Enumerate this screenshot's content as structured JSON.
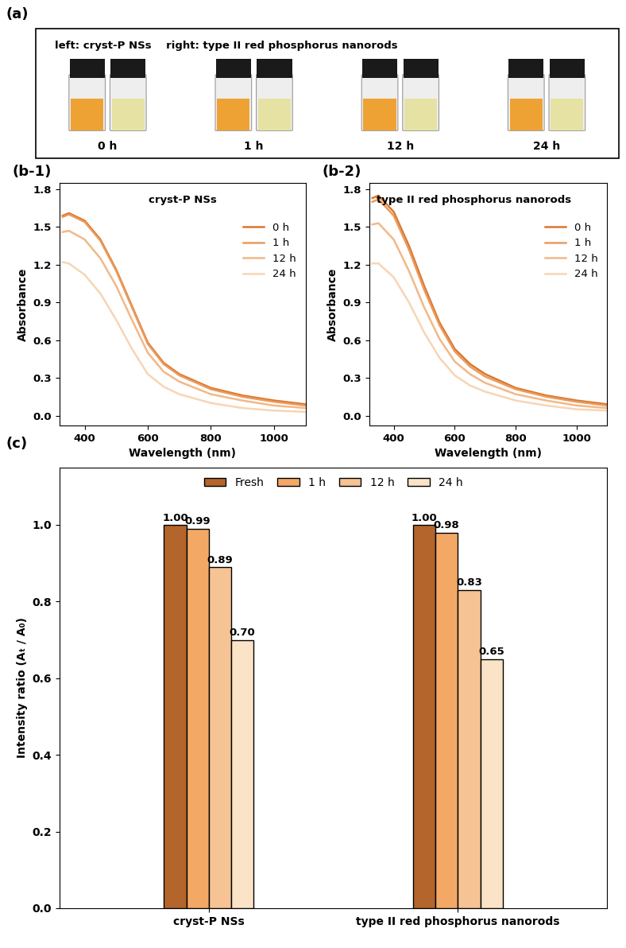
{
  "panel_a": {
    "panel_label": "(a)",
    "header": "left: cryst-P NSs    right: type II red phosphorus nanorods",
    "times": [
      "0 h",
      "1 h",
      "12 h",
      "24 h"
    ]
  },
  "chart_data": [
    {
      "panel_label": "(b-1)",
      "type": "line",
      "title": "cryst-P NSs",
      "x_label": "Wavelength (nm)",
      "y_label": "Absorbance",
      "x": [
        330,
        350,
        400,
        450,
        500,
        550,
        600,
        650,
        700,
        800,
        900,
        1000,
        1100
      ],
      "series": [
        {
          "name": "0 h",
          "color": "#d9772e",
          "values": [
            1.59,
            1.61,
            1.55,
            1.4,
            1.16,
            0.87,
            0.58,
            0.42,
            0.33,
            0.22,
            0.16,
            0.12,
            0.09
          ]
        },
        {
          "name": "1 h",
          "color": "#eb9a5c",
          "values": [
            1.58,
            1.6,
            1.54,
            1.39,
            1.15,
            0.86,
            0.57,
            0.41,
            0.32,
            0.21,
            0.15,
            0.11,
            0.08
          ]
        },
        {
          "name": "12 h",
          "color": "#f2b888",
          "values": [
            1.46,
            1.47,
            1.4,
            1.25,
            1.03,
            0.76,
            0.5,
            0.35,
            0.27,
            0.17,
            0.12,
            0.08,
            0.06
          ]
        },
        {
          "name": "24 h",
          "color": "#f7d5b4",
          "values": [
            1.22,
            1.21,
            1.12,
            0.97,
            0.76,
            0.53,
            0.33,
            0.23,
            0.17,
            0.1,
            0.06,
            0.04,
            0.03
          ]
        }
      ],
      "xlim": [
        320,
        1100
      ],
      "xticks": [
        400,
        600,
        800,
        1000
      ],
      "ylim": [
        -0.08,
        1.85
      ],
      "yticks": [
        0.0,
        0.3,
        0.6,
        0.9,
        1.2,
        1.5,
        1.8
      ],
      "legend": "center right"
    },
    {
      "panel_label": "(b-2)",
      "type": "line",
      "title": "type II red phosphorus nanorods",
      "x_label": "Wavelength (nm)",
      "y_label": "Absorbance",
      "x": [
        330,
        350,
        400,
        450,
        500,
        550,
        600,
        650,
        700,
        800,
        900,
        1000,
        1100
      ],
      "series": [
        {
          "name": "0 h",
          "color": "#d9772e",
          "values": [
            1.73,
            1.75,
            1.62,
            1.35,
            1.03,
            0.74,
            0.53,
            0.41,
            0.33,
            0.22,
            0.16,
            0.12,
            0.09
          ]
        },
        {
          "name": "1 h",
          "color": "#eb9a5c",
          "values": [
            1.7,
            1.72,
            1.59,
            1.32,
            1.0,
            0.72,
            0.51,
            0.39,
            0.31,
            0.21,
            0.15,
            0.11,
            0.08
          ]
        },
        {
          "name": "12 h",
          "color": "#f2b888",
          "values": [
            1.52,
            1.53,
            1.4,
            1.15,
            0.86,
            0.61,
            0.43,
            0.33,
            0.26,
            0.17,
            0.12,
            0.08,
            0.06
          ]
        },
        {
          "name": "24 h",
          "color": "#f7d5b4",
          "values": [
            1.21,
            1.21,
            1.1,
            0.9,
            0.66,
            0.46,
            0.32,
            0.24,
            0.19,
            0.12,
            0.08,
            0.05,
            0.04
          ]
        }
      ],
      "xlim": [
        320,
        1100
      ],
      "xticks": [
        400,
        600,
        800,
        1000
      ],
      "ylim": [
        -0.08,
        1.85
      ],
      "yticks": [
        0.0,
        0.3,
        0.6,
        0.9,
        1.2,
        1.5,
        1.8
      ],
      "legend": "center right"
    },
    {
      "panel_label": "(c)",
      "type": "bar",
      "y_label": "Intensity ratio (Aₜ / A₀)",
      "categories": [
        "cryst-P NSs",
        "type II red phosphorus nanorods"
      ],
      "series": [
        {
          "name": "Fresh",
          "color": "#b3652c",
          "values": [
            1.0,
            1.0
          ],
          "value_labels": [
            "1.00",
            "1.00"
          ]
        },
        {
          "name": "1 h",
          "color": "#f3a866",
          "values": [
            0.99,
            0.98
          ],
          "value_labels": [
            "0.99",
            "0.98"
          ]
        },
        {
          "name": "12 h",
          "color": "#f6c394",
          "values": [
            0.89,
            0.83
          ],
          "value_labels": [
            "0.89",
            "0.83"
          ]
        },
        {
          "name": "24 h",
          "color": "#fbe3c8",
          "values": [
            0.7,
            0.65
          ],
          "value_labels": [
            "0.70",
            "0.65"
          ]
        }
      ],
      "ylim": [
        0,
        1.15
      ],
      "yticks": [
        0.0,
        0.2,
        0.4,
        0.6,
        0.8,
        1.0
      ],
      "data_labels": true,
      "legend": "upper center"
    }
  ]
}
